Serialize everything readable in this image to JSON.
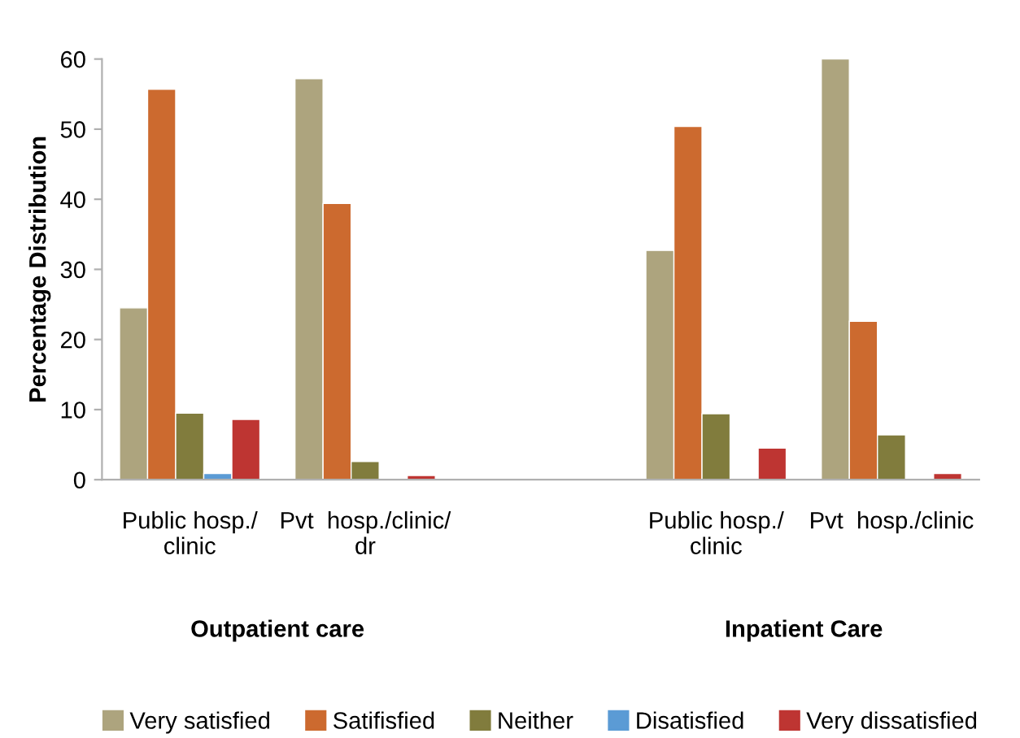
{
  "chart_data": {
    "type": "bar",
    "ylabel": "Percentage Distribution",
    "categories": [
      "Public hosp./\nclinic",
      "Pvt  hosp./clinic/\ndr",
      null,
      "Public hosp./\nclinic",
      "Pvt  hosp./clinic"
    ],
    "series": [
      {
        "name": "Very satisfied",
        "color": "#ada47e",
        "values": [
          24.5,
          57.2,
          null,
          32.7,
          60
        ]
      },
      {
        "name": "Satifisfied",
        "color": "#cc6a2f",
        "values": [
          55.7,
          39.4,
          null,
          50.4,
          22.6
        ]
      },
      {
        "name": "Neither",
        "color": "#817c3d",
        "values": [
          9.5,
          2.6,
          null,
          9.4,
          6.4
        ]
      },
      {
        "name": "Disatisfied",
        "color": "#5b9bd5",
        "values": [
          0.9,
          null,
          null,
          null,
          null
        ]
      },
      {
        "name": "Very dissatisfied",
        "color": "#be3532",
        "values": [
          8.6,
          0.6,
          null,
          4.5,
          0.9
        ]
      }
    ],
    "annotations": [
      {
        "text": "Outpatient care"
      },
      {
        "text": "Inpatient Care"
      }
    ],
    "ylim": [
      0,
      60
    ],
    "yticks": [
      0,
      10,
      20,
      30,
      40,
      50,
      60
    ],
    "grid": false,
    "legend": "bottom"
  }
}
